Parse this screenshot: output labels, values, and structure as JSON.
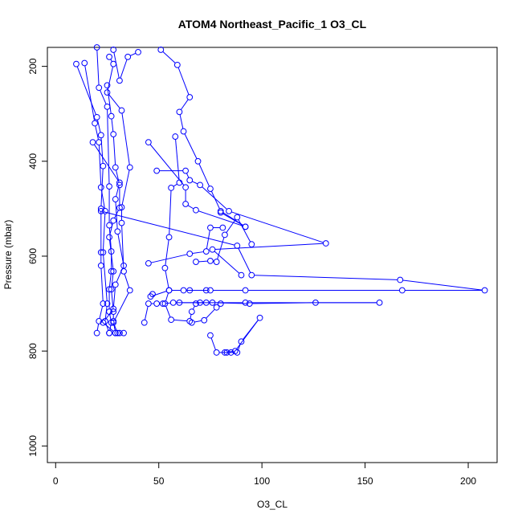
{
  "chart_data": {
    "type": "scatter",
    "title": "ATOM4 Northeast_Pacific_1 O3_CL",
    "xlabel": "O3_CL",
    "ylabel": "Pressure (mbar)",
    "xlim": [
      -4,
      214
    ],
    "ylim": [
      1035,
      160
    ],
    "y_inverted": true,
    "x_ticks": [
      0,
      50,
      100,
      150,
      200
    ],
    "y_ticks": [
      200,
      400,
      600,
      800,
      1000
    ],
    "grid": false,
    "legend": "none",
    "series_color": "#0000ff",
    "marker": "open-circle",
    "connected": true,
    "series": [
      {
        "points": [
          [
            10,
            195
          ],
          [
            20,
            307
          ],
          [
            22,
            345
          ],
          [
            23,
            410
          ],
          [
            22,
            500
          ],
          [
            22,
            592
          ],
          [
            22,
            620
          ],
          [
            23,
            700
          ],
          [
            21,
            737
          ],
          [
            20,
            762
          ]
        ]
      },
      {
        "points": [
          [
            14,
            193
          ],
          [
            19,
            320
          ],
          [
            21,
            360
          ],
          [
            22,
            455
          ],
          [
            24,
            505
          ],
          [
            23,
            592
          ],
          [
            25,
            700
          ],
          [
            24,
            737
          ],
          [
            26,
            762
          ]
        ]
      },
      {
        "points": [
          [
            20,
            160
          ],
          [
            21,
            245
          ],
          [
            25,
            285
          ],
          [
            26,
            453
          ],
          [
            26,
            535
          ],
          [
            27,
            590
          ],
          [
            27,
            632
          ],
          [
            26,
            670
          ],
          [
            26,
            717
          ],
          [
            27,
            740
          ],
          [
            26,
            762
          ]
        ]
      },
      {
        "points": [
          [
            25,
            240
          ],
          [
            27,
            305
          ],
          [
            28,
            343
          ],
          [
            29,
            413
          ],
          [
            31,
            450
          ],
          [
            31,
            498
          ],
          [
            28,
            525
          ],
          [
            26,
            560
          ],
          [
            28,
            632
          ],
          [
            27,
            670
          ],
          [
            28,
            717
          ],
          [
            28,
            737
          ],
          [
            29,
            762
          ]
        ]
      },
      {
        "points": [
          [
            26,
            180
          ],
          [
            28,
            195
          ],
          [
            25,
            255
          ],
          [
            32,
            293
          ],
          [
            36,
            413
          ],
          [
            32,
            497
          ],
          [
            32,
            530
          ],
          [
            33,
            632
          ],
          [
            36,
            672
          ],
          [
            28,
            740
          ],
          [
            30,
            762
          ]
        ]
      },
      {
        "points": [
          [
            28,
            165
          ],
          [
            31,
            230
          ],
          [
            35,
            180
          ],
          [
            40,
            170
          ]
        ]
      },
      {
        "points": [
          [
            18,
            360
          ],
          [
            31,
            445
          ],
          [
            29,
            480
          ],
          [
            30,
            548
          ],
          [
            33,
            620
          ],
          [
            29,
            660
          ],
          [
            28,
            711
          ],
          [
            23,
            740
          ],
          [
            29,
            762
          ],
          [
            31,
            762
          ],
          [
            33,
            762
          ]
        ]
      },
      {
        "points": [
          [
            22,
            505
          ],
          [
            88,
            578
          ],
          [
            95,
            640
          ],
          [
            167,
            650
          ],
          [
            208,
            672
          ],
          [
            168,
            672
          ],
          [
            92,
            672
          ],
          [
            75,
            672
          ],
          [
            65,
            672
          ]
        ]
      },
      {
        "points": [
          [
            51,
            165
          ],
          [
            59,
            197
          ],
          [
            65,
            265
          ],
          [
            60,
            296
          ],
          [
            62,
            337
          ],
          [
            69,
            400
          ],
          [
            75,
            458
          ],
          [
            80,
            505
          ],
          [
            92,
            538
          ]
        ]
      },
      {
        "points": [
          [
            45,
            360
          ],
          [
            63,
            455
          ],
          [
            63,
            490
          ],
          [
            68,
            503
          ],
          [
            92,
            538
          ],
          [
            80,
            508
          ]
        ]
      },
      {
        "points": [
          [
            58,
            348
          ],
          [
            60,
            445
          ],
          [
            56,
            456
          ],
          [
            55,
            560
          ],
          [
            53,
            625
          ],
          [
            55,
            672
          ],
          [
            53,
            700
          ],
          [
            56,
            734
          ],
          [
            65,
            737
          ],
          [
            66,
            717
          ],
          [
            68,
            700
          ],
          [
            70,
            698
          ]
        ]
      },
      {
        "points": [
          [
            49,
            420
          ],
          [
            63,
            420
          ],
          [
            65,
            440
          ],
          [
            70,
            450
          ],
          [
            84,
            505
          ],
          [
            131,
            573
          ],
          [
            76,
            586
          ],
          [
            90,
            640
          ]
        ]
      },
      {
        "points": [
          [
            45,
            615
          ],
          [
            65,
            595
          ],
          [
            73,
            590
          ],
          [
            75,
            540
          ],
          [
            81,
            540
          ]
        ]
      },
      {
        "points": [
          [
            68,
            612
          ],
          [
            75,
            610
          ],
          [
            78,
            612
          ],
          [
            82,
            555
          ],
          [
            88,
            518
          ],
          [
            95,
            575
          ]
        ]
      },
      {
        "points": [
          [
            47,
            680
          ],
          [
            46,
            685
          ],
          [
            55,
            672
          ],
          [
            62,
            672
          ],
          [
            73,
            672
          ]
        ]
      },
      {
        "points": [
          [
            43,
            740
          ],
          [
            45,
            700
          ],
          [
            49,
            700
          ],
          [
            52,
            700
          ],
          [
            57,
            698
          ],
          [
            73,
            698
          ],
          [
            76,
            698
          ],
          [
            94,
            700
          ],
          [
            126,
            698
          ],
          [
            157,
            698
          ],
          [
            92,
            698
          ],
          [
            60,
            698
          ]
        ]
      },
      {
        "points": [
          [
            66,
            740
          ],
          [
            72,
            735
          ],
          [
            78,
            708
          ],
          [
            80,
            700
          ]
        ]
      },
      {
        "points": [
          [
            75,
            767
          ],
          [
            78,
            803
          ],
          [
            85,
            803
          ],
          [
            83,
            803
          ],
          [
            88,
            803
          ],
          [
            90,
            780
          ],
          [
            99,
            730
          ],
          [
            87,
            800
          ],
          [
            82,
            803
          ]
        ]
      }
    ]
  }
}
